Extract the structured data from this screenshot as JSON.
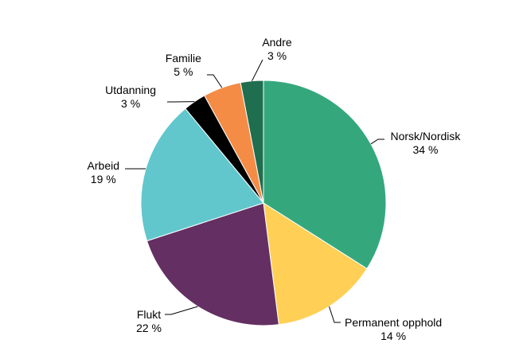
{
  "chart_data": {
    "type": "pie",
    "start_angle_deg": 0,
    "direction": "clockwise",
    "slices": [
      {
        "label": "Norsk/Nordisk",
        "value": 34,
        "display": "34 %",
        "color": "#34a87c"
      },
      {
        "label": "Permanent opphold",
        "value": 14,
        "display": "14 %",
        "color": "#ffd055"
      },
      {
        "label": "Flukt",
        "value": 22,
        "display": "22 %",
        "color": "#642f62"
      },
      {
        "label": "Arbeid",
        "value": 19,
        "display": "19 %",
        "color": "#61c7cd"
      },
      {
        "label": "Utdanning",
        "value": 3,
        "display": "3 %",
        "color": "#000000"
      },
      {
        "label": "Familie",
        "value": 5,
        "display": "5 %",
        "color": "#f48c45"
      },
      {
        "label": "Andre",
        "value": 3,
        "display": "3 %",
        "color": "#1f6e4f"
      }
    ]
  }
}
